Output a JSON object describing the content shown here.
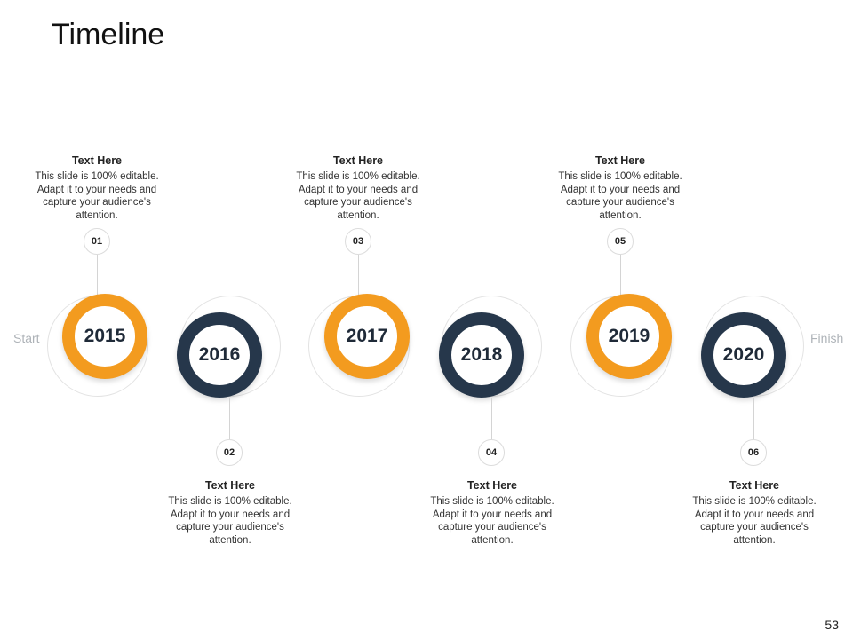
{
  "slide": {
    "title": "Timeline",
    "page_number": "53",
    "start_label": "Start",
    "finish_label": "Finish"
  },
  "milestones": [
    {
      "year": "2015",
      "number": "01",
      "heading": "Text Here",
      "body": "This slide is 100% editable. Adapt it to your needs and capture your audience's attention.",
      "color": "#f39b1f"
    },
    {
      "year": "2016",
      "number": "02",
      "heading": "Text Here",
      "body": "This slide is 100% editable. Adapt it to your needs and capture your audience's attention.",
      "color": "#26374b"
    },
    {
      "year": "2017",
      "number": "03",
      "heading": "Text Here",
      "body": "This slide is 100% editable. Adapt it to your needs and capture your audience's attention.",
      "color": "#f39b1f"
    },
    {
      "year": "2018",
      "number": "04",
      "heading": "Text Here",
      "body": "This slide is 100% editable. Adapt it to your needs and capture your audience's attention.",
      "color": "#26374b"
    },
    {
      "year": "2019",
      "number": "05",
      "heading": "Text Here",
      "body": "This slide is 100% editable. Adapt it to your needs and capture your audience's attention.",
      "color": "#f39b1f"
    },
    {
      "year": "2020",
      "number": "06",
      "heading": "Text Here",
      "body": "This slide is 100% editable. Adapt it to your needs and capture your audience's attention.",
      "color": "#26374b"
    }
  ]
}
